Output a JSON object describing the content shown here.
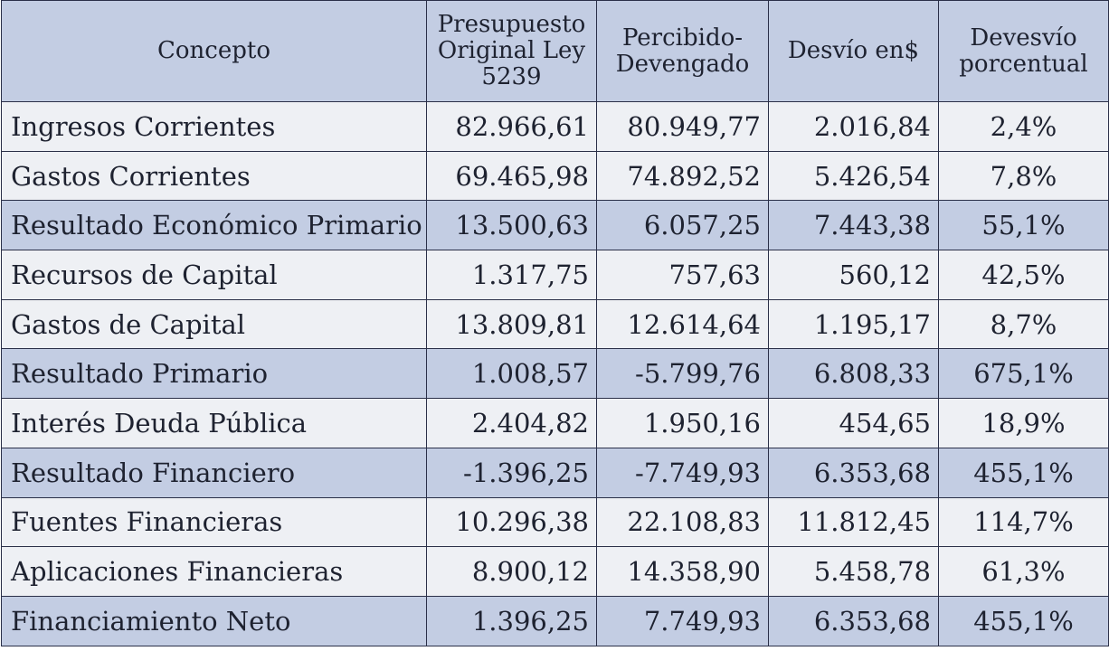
{
  "table": {
    "headers": [
      "Concepto",
      "Presupuesto Original Ley 5239",
      "Percibido-Devengado",
      "Desvío en$",
      "Devesvío porcentual"
    ],
    "rows": [
      {
        "concepto": "Ingresos Corrientes",
        "presupuesto": "82.966,61",
        "percibido": "80.949,77",
        "desvio": "2.016,84",
        "porcentual": "2,4%",
        "highlight": false
      },
      {
        "concepto": "Gastos Corrientes",
        "presupuesto": "69.465,98",
        "percibido": "74.892,52",
        "desvio": "5.426,54",
        "porcentual": "7,8%",
        "highlight": false
      },
      {
        "concepto": "Resultado Económico Primario",
        "presupuesto": "13.500,63",
        "percibido": "6.057,25",
        "desvio": "7.443,38",
        "porcentual": "55,1%",
        "highlight": true
      },
      {
        "concepto": "Recursos de Capital",
        "presupuesto": "1.317,75",
        "percibido": "757,63",
        "desvio": "560,12",
        "porcentual": "42,5%",
        "highlight": false
      },
      {
        "concepto": "Gastos de Capital",
        "presupuesto": "13.809,81",
        "percibido": "12.614,64",
        "desvio": "1.195,17",
        "porcentual": "8,7%",
        "highlight": false
      },
      {
        "concepto": "Resultado Primario",
        "presupuesto": "1.008,57",
        "percibido": "-5.799,76",
        "desvio": "6.808,33",
        "porcentual": "675,1%",
        "highlight": true
      },
      {
        "concepto": "Interés Deuda Pública",
        "presupuesto": "2.404,82",
        "percibido": "1.950,16",
        "desvio": "454,65",
        "porcentual": "18,9%",
        "highlight": false
      },
      {
        "concepto": "Resultado Financiero",
        "presupuesto": "-1.396,25",
        "percibido": "-7.749,93",
        "desvio": "6.353,68",
        "porcentual": "455,1%",
        "highlight": true
      },
      {
        "concepto": "Fuentes Financieras",
        "presupuesto": "10.296,38",
        "percibido": "22.108,83",
        "desvio": "11.812,45",
        "porcentual": "114,7%",
        "highlight": false
      },
      {
        "concepto": "Aplicaciones Financieras",
        "presupuesto": "8.900,12",
        "percibido": "14.358,90",
        "desvio": "5.458,78",
        "porcentual": "61,3%",
        "highlight": false
      },
      {
        "concepto": "Financiamiento Neto",
        "presupuesto": "1.396,25",
        "percibido": "7.749,93",
        "desvio": "6.353,68",
        "porcentual": "455,1%",
        "highlight": true
      }
    ]
  },
  "colors": {
    "header_bg": "#c3cde3",
    "result_row_bg": "#c3cde3",
    "plain_row_bg": "#eef0f4",
    "border": "#2a2f48",
    "text": "#1e2230"
  }
}
